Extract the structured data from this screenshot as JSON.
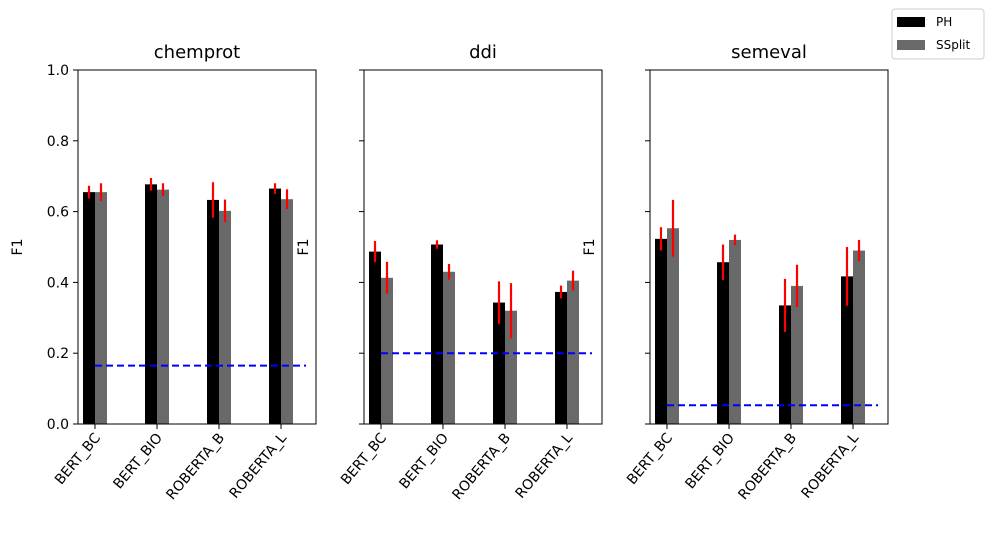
{
  "legend": {
    "placement": "top-right",
    "entries": [
      {
        "label": "PH",
        "color": "#000000"
      },
      {
        "label": "SSplit",
        "color": "#696969"
      }
    ]
  },
  "colors": {
    "error_bar": "#ff0000",
    "baseline": "#0000ff"
  },
  "chart_data": [
    {
      "type": "bar",
      "title": "chemprot",
      "ylabel": "F1",
      "ylim": [
        0,
        1.0
      ],
      "yticks": [
        "0.0",
        "0.2",
        "0.4",
        "0.6",
        "0.8",
        "1.0"
      ],
      "categories": [
        "BERT_BC",
        "BERT_BIO",
        "ROBERTA_B",
        "ROBERTA_L"
      ],
      "series": [
        {
          "name": "PH",
          "values": [
            0.655,
            0.677,
            0.633,
            0.665
          ],
          "errors": [
            0.018,
            0.018,
            0.05,
            0.015
          ]
        },
        {
          "name": "SSplit",
          "values": [
            0.655,
            0.662,
            0.602,
            0.635
          ],
          "errors": [
            0.025,
            0.018,
            0.032,
            0.028
          ]
        }
      ],
      "baseline": 0.165
    },
    {
      "type": "bar",
      "title": "ddi",
      "ylabel": "F1",
      "ylim": [
        0,
        1.0
      ],
      "categories": [
        "BERT_BC",
        "BERT_BIO",
        "ROBERTA_B",
        "ROBERTA_L"
      ],
      "series": [
        {
          "name": "PH",
          "values": [
            0.487,
            0.507,
            0.343,
            0.373
          ],
          "errors": [
            0.03,
            0.012,
            0.06,
            0.018
          ]
        },
        {
          "name": "SSplit",
          "values": [
            0.413,
            0.43,
            0.32,
            0.405
          ],
          "errors": [
            0.045,
            0.022,
            0.078,
            0.028
          ]
        }
      ],
      "baseline": 0.2
    },
    {
      "type": "bar",
      "title": "semeval",
      "ylabel": "F1",
      "ylim": [
        0,
        1.0
      ],
      "categories": [
        "BERT_BC",
        "BERT_BIO",
        "ROBERTA_B",
        "ROBERTA_L"
      ],
      "series": [
        {
          "name": "PH",
          "values": [
            0.523,
            0.457,
            0.335,
            0.417
          ],
          "errors": [
            0.033,
            0.05,
            0.075,
            0.083
          ]
        },
        {
          "name": "SSplit",
          "values": [
            0.553,
            0.52,
            0.39,
            0.49
          ],
          "errors": [
            0.08,
            0.015,
            0.06,
            0.03
          ]
        }
      ],
      "baseline": 0.053
    }
  ]
}
